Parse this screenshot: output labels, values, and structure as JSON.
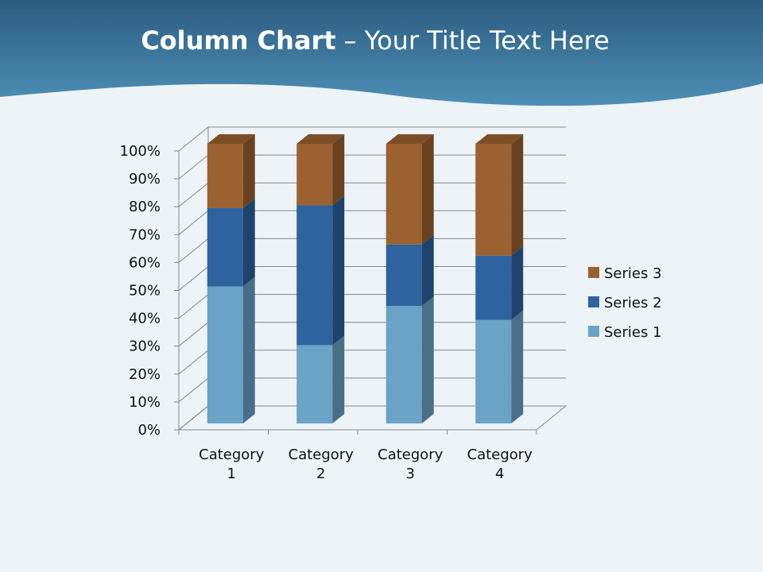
{
  "chart_data": {
    "type": "bar",
    "stacked": true,
    "title": "Column Chart",
    "subtitle": "– Your Title Text Here",
    "categories": [
      "Category 1",
      "Category 2",
      "Category 3",
      "Category 4"
    ],
    "series": [
      {
        "name": "Series 1",
        "color": "#6aa3c6",
        "values": [
          49,
          28,
          42,
          37
        ]
      },
      {
        "name": "Series 2",
        "color": "#2e63a0",
        "values": [
          28,
          50,
          22,
          23
        ]
      },
      {
        "name": "Series 3",
        "color": "#9c6130",
        "values": [
          23,
          22,
          36,
          40
        ]
      }
    ],
    "ylim": [
      0,
      100
    ],
    "yticks": [
      {
        "value": 0,
        "label": "0%"
      },
      {
        "value": 10,
        "label": "10%"
      },
      {
        "value": 20,
        "label": "20%"
      },
      {
        "value": 30,
        "label": "30%"
      },
      {
        "value": 40,
        "label": "40%"
      },
      {
        "value": 50,
        "label": "50%"
      },
      {
        "value": 60,
        "label": "60%"
      },
      {
        "value": 70,
        "label": "70%"
      },
      {
        "value": 80,
        "label": "80%"
      },
      {
        "value": 90,
        "label": "90%"
      },
      {
        "value": 100,
        "label": "100%"
      }
    ],
    "grid": true,
    "legend": "right"
  }
}
